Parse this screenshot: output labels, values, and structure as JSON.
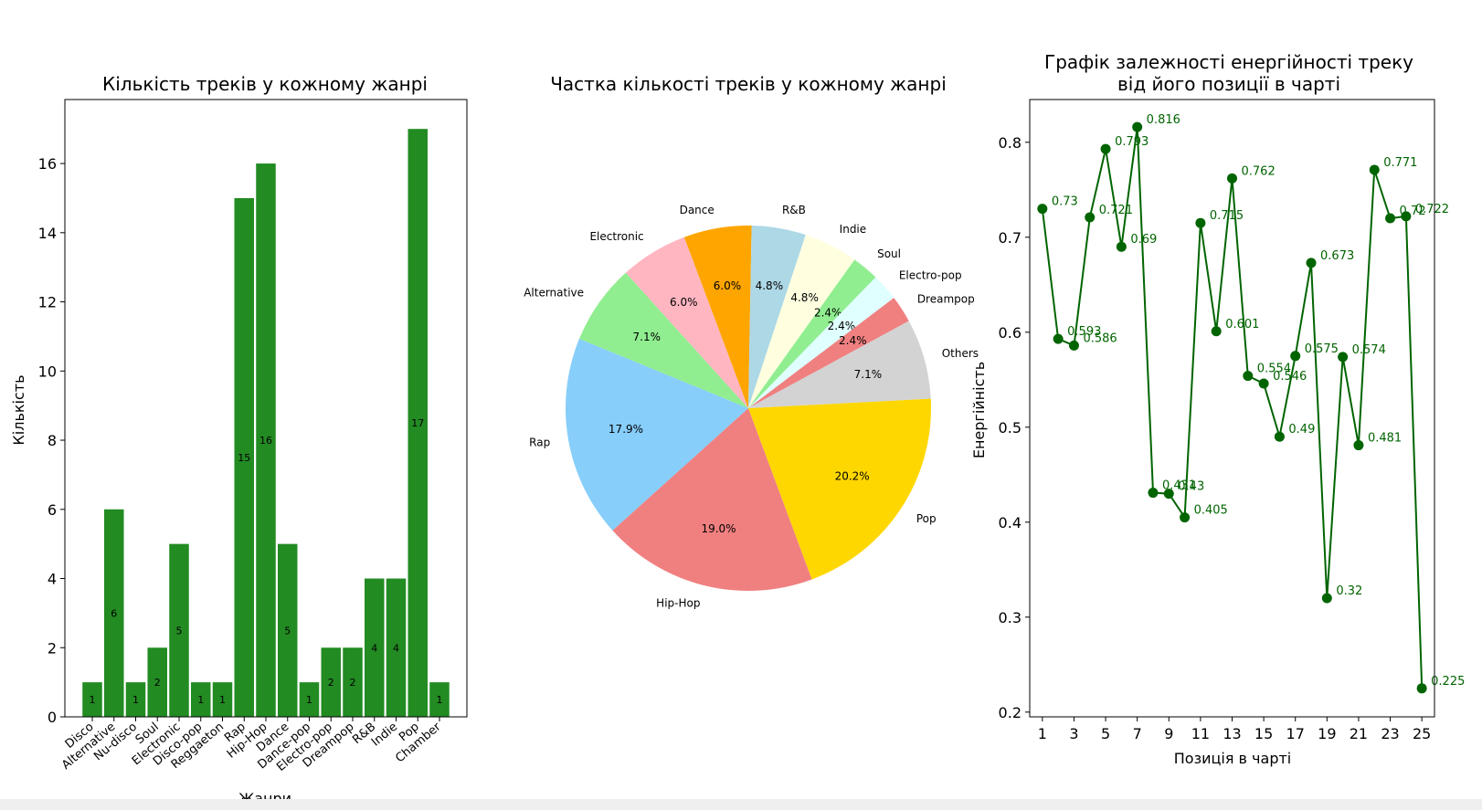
{
  "colors": {
    "bar": "#228b22",
    "line": "#006400",
    "label": "#006400",
    "axis": "#000000"
  },
  "chart_data": [
    {
      "type": "bar",
      "title": "Кількість треків у кожному жанрі",
      "xlabel": "Жанри",
      "ylabel": "Кількість",
      "categories": [
        "Disco",
        "Alternative",
        "Nu-disco",
        "Soul",
        "Electronic",
        "Disco-pop",
        "Reggaeton",
        "Rap",
        "Hip-Hop",
        "Dance",
        "Dance-pop",
        "Electro-pop",
        "Dreampop",
        "R&B",
        "Indie",
        "Pop",
        "Chamber"
      ],
      "values": [
        1,
        6,
        1,
        2,
        5,
        1,
        1,
        15,
        16,
        5,
        1,
        2,
        2,
        4,
        4,
        17,
        1
      ],
      "value_labels": [
        "1",
        "6",
        "1",
        "2",
        "5",
        "1",
        "1",
        "15",
        "16",
        "5",
        "1",
        "2",
        "2",
        "4",
        "4",
        "17",
        "1"
      ],
      "yticks": [
        "0",
        "2",
        "4",
        "6",
        "8",
        "10",
        "12",
        "14",
        "16"
      ],
      "ylim": [
        0,
        17.85
      ],
      "grid": false
    },
    {
      "type": "pie",
      "title": "Частка кількості треків у кожному жанрі",
      "slices": [
        {
          "label": "Pop",
          "value": 20.2,
          "pct": "20.2%",
          "color": "#ffd700"
        },
        {
          "label": "Hip-Hop",
          "value": 19.0,
          "pct": "19.0%",
          "color": "#f08080"
        },
        {
          "label": "Rap",
          "value": 17.9,
          "pct": "17.9%",
          "color": "#87cefa"
        },
        {
          "label": "Alternative",
          "value": 7.1,
          "pct": "7.1%",
          "color": "#90ee90"
        },
        {
          "label": "Electronic",
          "value": 6.0,
          "pct": "6.0%",
          "color": "#ffb6c1"
        },
        {
          "label": "Dance",
          "value": 6.0,
          "pct": "6.0%",
          "color": "#ffa500"
        },
        {
          "label": "R&B",
          "value": 4.8,
          "pct": "4.8%",
          "color": "#add8e6"
        },
        {
          "label": "Indie",
          "value": 4.8,
          "pct": "4.8%",
          "color": "#ffffe0"
        },
        {
          "label": "Soul",
          "value": 2.4,
          "pct": "2.4%",
          "color": "#90ee90"
        },
        {
          "label": "Electro-pop",
          "value": 2.4,
          "pct": "2.4%",
          "color": "#e0ffff"
        },
        {
          "label": "Dreampop",
          "value": 2.4,
          "pct": "2.4%",
          "color": "#f08080"
        },
        {
          "label": "Others",
          "value": 7.1,
          "pct": "7.1%",
          "color": "#d3d3d3"
        }
      ]
    },
    {
      "type": "line",
      "title": "Графік залежності енергійності треку",
      "subtitle": "від його позиції в чарті",
      "xlabel": "Позиція в чарті",
      "ylabel": "Енергійність",
      "x": [
        1,
        2,
        3,
        4,
        5,
        6,
        7,
        8,
        9,
        10,
        11,
        12,
        13,
        14,
        15,
        16,
        17,
        18,
        19,
        20,
        21,
        22,
        23,
        24,
        25
      ],
      "y": [
        0.73,
        0.593,
        0.586,
        0.721,
        0.793,
        0.69,
        0.816,
        0.431,
        0.43,
        0.405,
        0.715,
        0.601,
        0.762,
        0.554,
        0.546,
        0.49,
        0.575,
        0.673,
        0.32,
        0.574,
        0.481,
        0.771,
        0.72,
        0.722,
        0.225
      ],
      "point_labels": [
        "0.73",
        "0.593",
        "0.586",
        "0.721",
        "0.793",
        "0.69",
        "0.816",
        "0.431",
        "0.43",
        "0.405",
        "0.715",
        "0.601",
        "0.762",
        "0.554",
        "0.546",
        "0.49",
        "0.575",
        "0.673",
        "0.32",
        "0.574",
        "0.481",
        "0.771",
        "0.72",
        "0.722",
        "0.225"
      ],
      "xticks": [
        "1",
        "3",
        "5",
        "7",
        "9",
        "11",
        "13",
        "15",
        "17",
        "19",
        "21",
        "23",
        "25"
      ],
      "yticks": [
        "0.2",
        "0.3",
        "0.4",
        "0.5",
        "0.6",
        "0.7",
        "0.8"
      ],
      "ylim": [
        0.195,
        0.845
      ],
      "xlim": [
        0.2,
        25.8
      ],
      "grid": false
    }
  ]
}
